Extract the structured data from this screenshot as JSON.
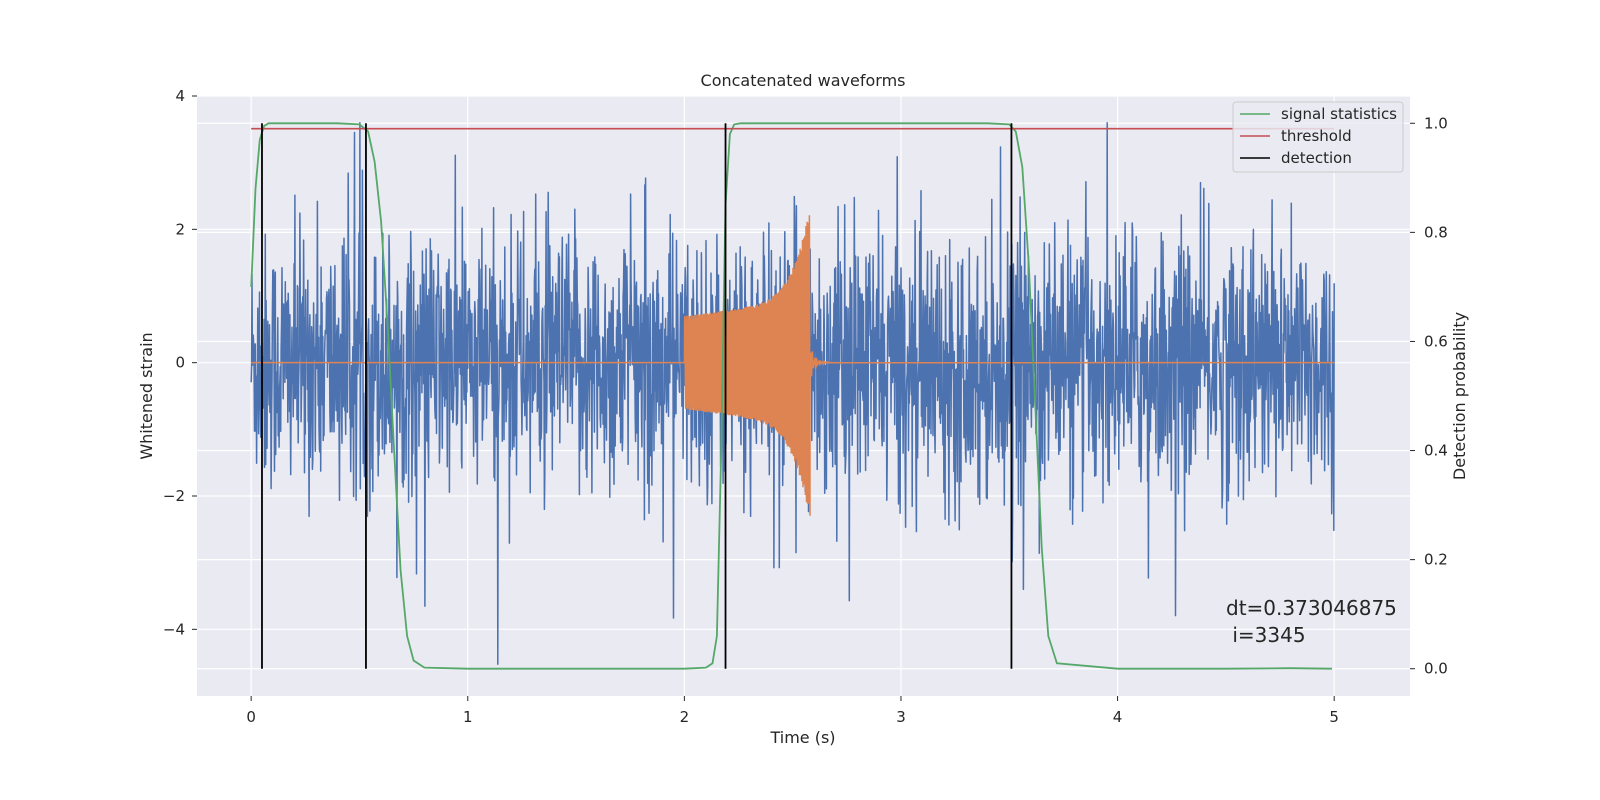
{
  "chart_data": {
    "type": "line",
    "title": "Concatenated waveforms",
    "xlabel": "Time (s)",
    "ylabel": "Whitened strain",
    "y2label": "Detection probability",
    "xlim": [
      -0.25,
      5.35
    ],
    "ylim": [
      -5.0,
      4.0
    ],
    "y2lim": [
      -0.05,
      1.05
    ],
    "x_ticks": [
      0,
      1,
      2,
      3,
      4,
      5
    ],
    "y_ticks": [
      -4,
      -2,
      0,
      2,
      4
    ],
    "y2_ticks": [
      0.0,
      0.2,
      0.4,
      0.6,
      0.8,
      1.0
    ],
    "x_tick_labels": [
      "0",
      "1",
      "2",
      "3",
      "4",
      "5"
    ],
    "y_tick_labels": [
      "−4",
      "−2",
      "0",
      "2",
      "4"
    ],
    "y2_tick_labels": [
      "0.0",
      "0.2",
      "0.4",
      "0.6",
      "0.8",
      "1.0"
    ],
    "grid": true,
    "legend_position": "top-right",
    "legend": [
      "signal statistics",
      "threshold",
      "detection"
    ],
    "colors": {
      "strain": "#4c72b0",
      "template": "#dd8452",
      "signal_statistics": "#55a868",
      "threshold": "#c44e52",
      "detection": "#000000",
      "background": "#eaeaf2",
      "grid": "#ffffff"
    },
    "series": [
      {
        "name": "signal statistics",
        "axis": "right",
        "x": [
          0.0,
          0.02,
          0.04,
          0.06,
          0.08,
          0.1,
          0.2,
          0.3,
          0.4,
          0.5,
          0.54,
          0.57,
          0.6,
          0.63,
          0.66,
          0.69,
          0.72,
          0.75,
          0.8,
          1.0,
          1.5,
          2.0,
          2.1,
          2.13,
          2.15,
          2.17,
          2.19,
          2.21,
          2.23,
          2.26,
          2.3,
          2.5,
          3.0,
          3.4,
          3.5,
          3.53,
          3.56,
          3.59,
          3.62,
          3.65,
          3.68,
          3.72,
          4.0,
          4.5,
          4.8,
          4.99
        ],
        "values": [
          0.7,
          0.88,
          0.97,
          0.995,
          1.0,
          1.0,
          1.0,
          1.0,
          1.0,
          0.998,
          0.985,
          0.93,
          0.82,
          0.63,
          0.4,
          0.18,
          0.06,
          0.015,
          0.002,
          0.0,
          0.0,
          0.0,
          0.002,
          0.01,
          0.06,
          0.4,
          0.85,
          0.98,
          0.998,
          1.0,
          1.0,
          1.0,
          1.0,
          1.0,
          0.998,
          0.985,
          0.92,
          0.74,
          0.48,
          0.22,
          0.06,
          0.01,
          0.0,
          0.0,
          0.001,
          0.0
        ]
      },
      {
        "name": "threshold",
        "axis": "right",
        "x": [
          0.0,
          5.0
        ],
        "values": [
          0.99,
          0.99
        ]
      }
    ],
    "detections_x": [
      0.05,
      0.53,
      2.19,
      3.51
    ],
    "strain_noise": {
      "x_range": [
        0.0,
        5.0
      ],
      "amplitude_range": [
        -4.6,
        3.6
      ]
    },
    "template_chirp": {
      "x_range": [
        2.0,
        2.58
      ],
      "amplitude_range": [
        -2.4,
        2.4
      ]
    },
    "annotation": [
      "dt=0.373046875",
      " i=3345"
    ]
  }
}
